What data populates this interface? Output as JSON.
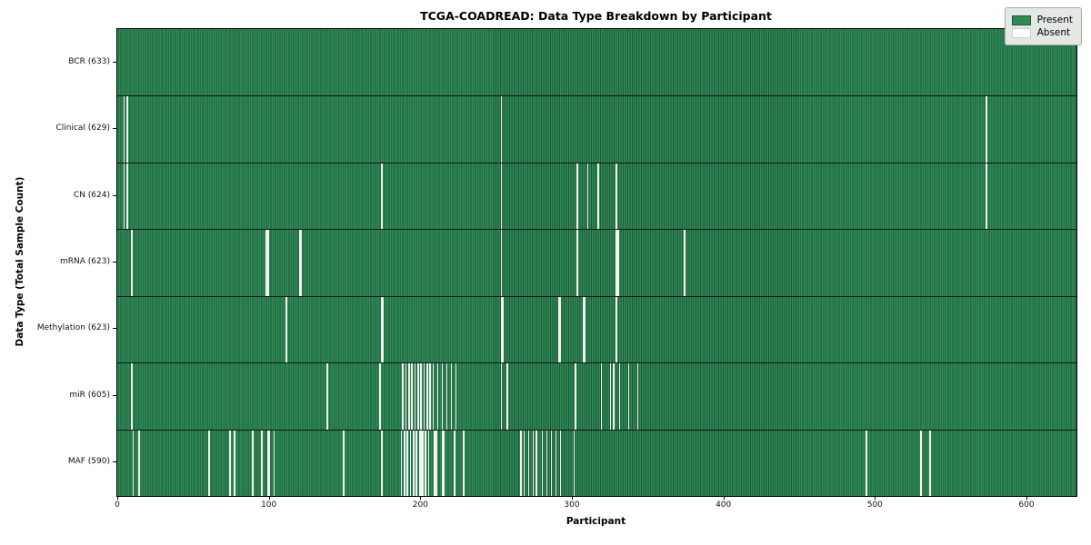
{
  "chart_data": {
    "type": "heatmap",
    "title": "TCGA-COADREAD: Data Type Breakdown by Participant",
    "xlabel": "Participant",
    "ylabel": "Data Type (Total Sample Count)",
    "n_participants": 633,
    "x_ticks": [
      0,
      100,
      200,
      300,
      400,
      500,
      600
    ],
    "xlim": [
      0,
      633
    ],
    "grid": false,
    "legend_position": "upper-right",
    "colors": {
      "present": "#2e8b57",
      "present_edge": "#1f5737",
      "absent": "#f2f2ee",
      "legend_bg": "#e4e8e3"
    },
    "legend": [
      {
        "label": "Present",
        "color": "#2e8b57"
      },
      {
        "label": "Absent",
        "color": "#ffffff"
      }
    ],
    "rows": [
      {
        "name": "BCR",
        "label": "BCR (633)",
        "present_count": 633,
        "absent_participants": []
      },
      {
        "name": "Clinical",
        "label": "Clinical (629)",
        "present_count": 629,
        "absent_participants": [
          4,
          6,
          253,
          573
        ]
      },
      {
        "name": "CN",
        "label": "CN (624)",
        "present_count": 624,
        "absent_participants": [
          4,
          6,
          174,
          253,
          303,
          310,
          317,
          329,
          573
        ]
      },
      {
        "name": "mRNA",
        "label": "mRNA (623)",
        "present_count": 623,
        "absent_participants": [
          9,
          98,
          99,
          120,
          121,
          253,
          303,
          329,
          330,
          374
        ]
      },
      {
        "name": "Methylation",
        "label": "Methylation (623)",
        "present_count": 623,
        "absent_participants": [
          111,
          174,
          175,
          253,
          254,
          291,
          292,
          307,
          308,
          329
        ]
      },
      {
        "name": "miR",
        "label": "miR (605)",
        "present_count": 605,
        "absent_participants": [
          9,
          138,
          173,
          188,
          190,
          192,
          194,
          196,
          198,
          200,
          202,
          204,
          206,
          208,
          211,
          214,
          217,
          220,
          223,
          253,
          257,
          302,
          319,
          325,
          327,
          331,
          337,
          343
        ]
      },
      {
        "name": "MAF",
        "label": "MAF (590)",
        "present_count": 590,
        "absent_participants": [
          10,
          14,
          60,
          74,
          77,
          89,
          95,
          99,
          100,
          103,
          149,
          174,
          187,
          189,
          191,
          193,
          195,
          197,
          199,
          200,
          201,
          203,
          205,
          209,
          210,
          214,
          215,
          222,
          228,
          266,
          268,
          271,
          274,
          276,
          280,
          283,
          286,
          289,
          292,
          301,
          494,
          530,
          536
        ]
      }
    ]
  }
}
